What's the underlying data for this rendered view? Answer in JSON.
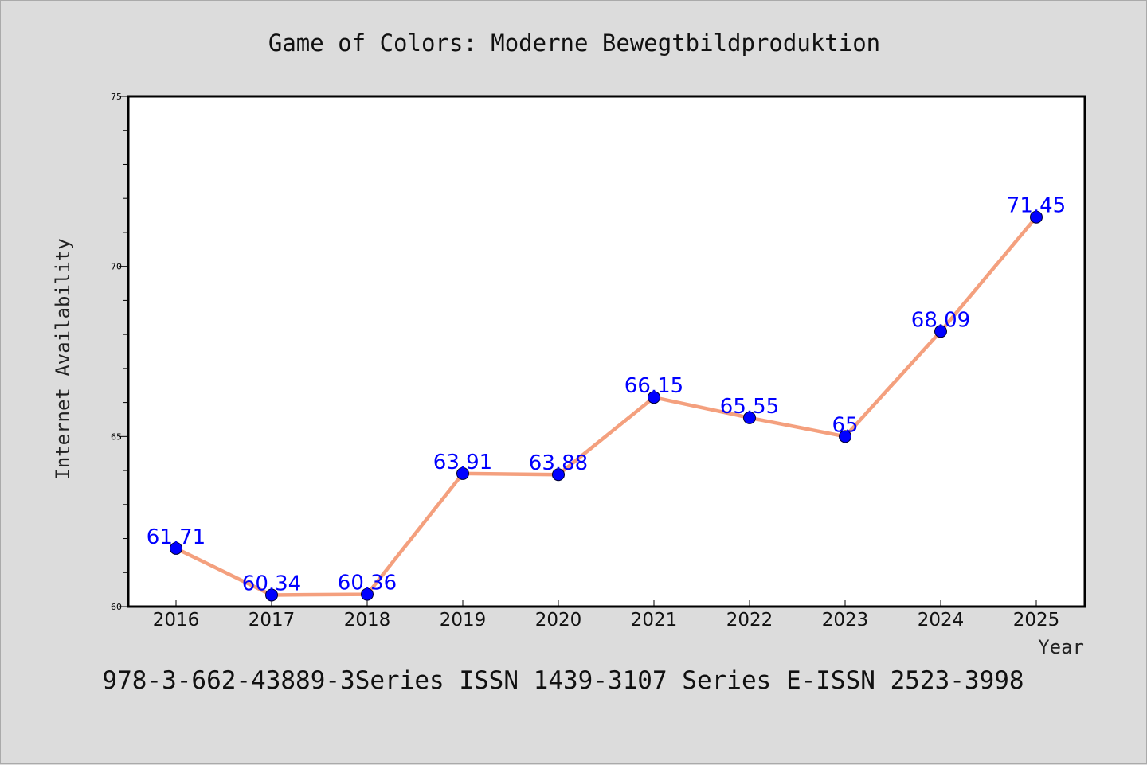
{
  "chart_data": {
    "type": "line",
    "title": "Game of Colors: Moderne Bewegtbildproduktion",
    "xlabel": "Year",
    "ylabel": "Internet Availability",
    "footer": "978-3-662-43889-3Series ISSN 1439-3107 Series E-ISSN 2523-3998",
    "categories": [
      "2016",
      "2017",
      "2018",
      "2019",
      "2020",
      "2021",
      "2022",
      "2023",
      "2024",
      "2025"
    ],
    "series": [
      {
        "values": [
          61.71,
          60.34,
          60.36,
          63.91,
          63.88,
          66.15,
          65.55,
          65,
          68.09,
          71.45
        ],
        "labels": [
          "61.71",
          "60.34",
          "60.36",
          "63.91",
          "63.88",
          "66.15",
          "65.55",
          "65",
          "68.09",
          "71.45"
        ]
      }
    ],
    "ylim": [
      60,
      75
    ],
    "yticks": [
      "60",
      "65",
      "70",
      "75"
    ],
    "grid": false,
    "colors": {
      "line": "#f4a07e",
      "marker": "#0000ff",
      "label": "#0000ff",
      "background": "#dcdcdc",
      "plot_background": "#ffffff"
    }
  }
}
